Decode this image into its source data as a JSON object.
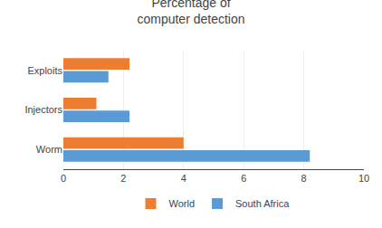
{
  "chart_data": {
    "type": "bar",
    "orientation": "horizontal",
    "title": "Percentage of\ncomputer detection",
    "categories": [
      "Worm",
      "Injectors",
      "Exploits"
    ],
    "series": [
      {
        "name": "World",
        "color": "#ED7D31",
        "values": [
          4.0,
          1.1,
          2.2
        ]
      },
      {
        "name": "South Africa",
        "color": "#5B9BD5",
        "values": [
          8.2,
          2.2,
          1.5
        ]
      }
    ],
    "xlim": [
      0,
      10
    ],
    "xticks": [
      0,
      2,
      4,
      6,
      8,
      10
    ],
    "grid": true,
    "legend": "bottom"
  }
}
